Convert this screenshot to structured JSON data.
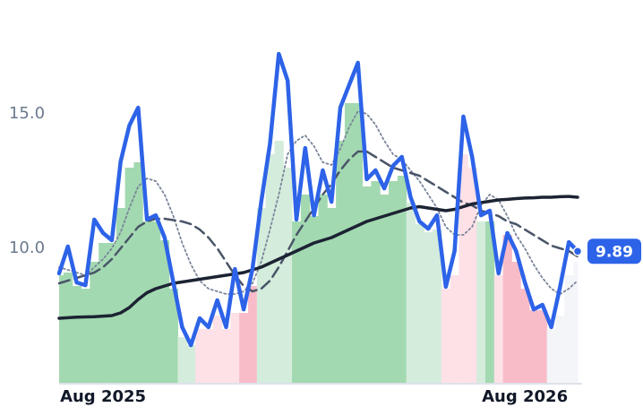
{
  "chart_data": {
    "type": "line",
    "categories": [
      null,
      null,
      null,
      null,
      null,
      "Aug 2025",
      null,
      null,
      null,
      null,
      null,
      null,
      null,
      null,
      null,
      null,
      null,
      null,
      null,
      null,
      null,
      null,
      null,
      null,
      null,
      null,
      null,
      null,
      null,
      null,
      null,
      null,
      null,
      null,
      null,
      null,
      null,
      null,
      null,
      null,
      null,
      null,
      null,
      null,
      null,
      null,
      null,
      null,
      null,
      null,
      null,
      null,
      null,
      "Aug 2026",
      null,
      null,
      null,
      null,
      null,
      null
    ],
    "series": [
      {
        "color": "#2d63e8",
        "style": "solid",
        "width": 4.5,
        "values": [
          9.07,
          10.07,
          8.73,
          8.63,
          11.07,
          10.57,
          10.3,
          13.23,
          14.57,
          15.23,
          11.07,
          11.23,
          10.4,
          8.73,
          7.07,
          6.4,
          7.4,
          7.07,
          8.07,
          7.07,
          9.23,
          7.73,
          9.23,
          11.73,
          13.9,
          17.23,
          16.23,
          11.07,
          13.73,
          11.23,
          12.9,
          11.73,
          15.23,
          16.07,
          16.9,
          12.57,
          12.9,
          12.23,
          13.07,
          13.4,
          11.9,
          11.0,
          10.73,
          11.23,
          8.57,
          9.9,
          14.9,
          13.4,
          11.23,
          11.4,
          9.07,
          10.57,
          9.9,
          8.73,
          7.73,
          7.9,
          7.07,
          8.57,
          10.23,
          9.89
        ]
      },
      {
        "color": "#1c2333",
        "style": "solid",
        "width": 3.5,
        "values": [
          7.4,
          7.42,
          7.44,
          7.45,
          7.46,
          7.48,
          7.5,
          7.6,
          7.8,
          8.1,
          8.35,
          8.5,
          8.6,
          8.7,
          8.75,
          8.8,
          8.85,
          8.9,
          8.95,
          9.0,
          9.05,
          9.1,
          9.2,
          9.3,
          9.45,
          9.6,
          9.75,
          9.9,
          10.05,
          10.2,
          10.3,
          10.4,
          10.55,
          10.7,
          10.85,
          11.0,
          11.1,
          11.2,
          11.3,
          11.4,
          11.5,
          11.55,
          11.5,
          11.45,
          11.4,
          11.45,
          11.55,
          11.65,
          11.7,
          11.75,
          11.8,
          11.82,
          11.85,
          11.87,
          11.88,
          11.9,
          11.9,
          11.92,
          11.93,
          11.9
        ]
      },
      {
        "color": "#4a5568",
        "style": "dashed",
        "width": 2.5,
        "values": [
          8.7,
          8.8,
          8.9,
          9.0,
          9.1,
          9.3,
          9.6,
          10.0,
          10.4,
          10.8,
          11.0,
          11.1,
          11.1,
          11.05,
          11.0,
          10.9,
          10.7,
          10.4,
          10.0,
          9.5,
          9.0,
          8.6,
          8.4,
          8.5,
          8.8,
          9.3,
          9.9,
          10.5,
          11.0,
          11.5,
          12.0,
          12.4,
          12.9,
          13.3,
          13.6,
          13.6,
          13.4,
          13.2,
          13.0,
          12.9,
          12.8,
          12.7,
          12.5,
          12.3,
          12.1,
          11.9,
          11.7,
          11.6,
          11.4,
          11.3,
          11.2,
          11.0,
          10.9,
          10.7,
          10.5,
          10.3,
          10.1,
          10.0,
          9.9,
          9.7
        ]
      },
      {
        "color": "#7a8599",
        "style": "dotted",
        "width": 1.8,
        "values": [
          9.3,
          9.2,
          9.1,
          9.0,
          9.3,
          9.6,
          10.0,
          10.6,
          11.5,
          12.3,
          12.6,
          12.5,
          12.0,
          11.2,
          10.2,
          9.4,
          8.8,
          8.5,
          8.4,
          8.3,
          8.3,
          8.4,
          8.7,
          9.5,
          10.7,
          12.0,
          13.5,
          14.0,
          14.2,
          13.8,
          13.2,
          13.1,
          13.7,
          14.5,
          15.1,
          15.0,
          14.6,
          14.0,
          13.5,
          13.3,
          12.9,
          12.5,
          12.0,
          11.5,
          10.8,
          10.5,
          10.5,
          10.8,
          11.6,
          12.0,
          11.8,
          11.2,
          10.5,
          10.0,
          9.4,
          8.9,
          8.5,
          8.3,
          8.5,
          8.8
        ]
      }
    ],
    "bands": {
      "values": [
        9.0,
        9.1,
        8.6,
        8.5,
        9.5,
        10.2,
        10.2,
        11.5,
        13.0,
        13.2,
        11.0,
        11.0,
        10.3,
        8.5,
        6.7,
        6.4,
        7.0,
        7.0,
        7.5,
        7.0,
        7.6,
        7.6,
        8.6,
        11.5,
        13.5,
        14.0,
        13.0,
        11.0,
        12.0,
        11.2,
        12.0,
        11.5,
        14.0,
        15.4,
        15.4,
        12.3,
        12.5,
        12.0,
        12.5,
        12.7,
        11.7,
        10.9,
        10.6,
        10.7,
        8.5,
        9.0,
        13.5,
        13.0,
        11.0,
        11.0,
        9.0,
        10.5,
        9.5,
        8.5,
        7.7,
        7.7,
        7.0,
        7.5,
        9.0,
        9.5
      ],
      "colors": [
        "#a3d9b1",
        "#a3d9b1",
        "#a3d9b1",
        "#a3d9b1",
        "#a3d9b1",
        "#a3d9b1",
        "#a3d9b1",
        "#a3d9b1",
        "#a3d9b1",
        "#a3d9b1",
        "#a3d9b1",
        "#a3d9b1",
        "#a3d9b1",
        "#a3d9b1",
        "#d4ecdc",
        "#d4ecdc",
        "#fde1e7",
        "#fde1e7",
        "#fde1e7",
        "#fde1e7",
        "#fde1e7",
        "#f8bcc8",
        "#f8bcc8",
        "#d4ecdc",
        "#d4ecdc",
        "#d4ecdc",
        "#d4ecdc",
        "#a3d9b1",
        "#a3d9b1",
        "#a3d9b1",
        "#a3d9b1",
        "#a3d9b1",
        "#a3d9b1",
        "#a3d9b1",
        "#a3d9b1",
        "#a3d9b1",
        "#a3d9b1",
        "#a3d9b1",
        "#a3d9b1",
        "#a3d9b1",
        "#d4ecdc",
        "#d4ecdc",
        "#d4ecdc",
        "#d4ecdc",
        "#fde1e7",
        "#fde1e7",
        "#fde1e7",
        "#fde1e7",
        "#d4ecdc",
        "#a3d9b1",
        "#fde1e7",
        "#f8bcc8",
        "#f8bcc8",
        "#f8bcc8",
        "#f8bcc8",
        "#f8bcc8",
        "#f3f5f8",
        "#f3f5f8",
        "#f3f5f8",
        "#f3f5f8"
      ]
    },
    "ylim": [
      5,
      18
    ],
    "yticks": [
      {
        "value": 10,
        "label": "10.0"
      },
      {
        "value": 15,
        "label": "15.0"
      }
    ],
    "grid": false
  }
}
